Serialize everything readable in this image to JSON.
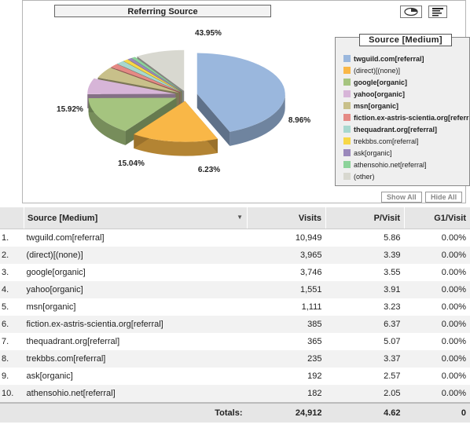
{
  "chart_data": {
    "type": "pie",
    "title": "Referring Source",
    "legend_title": "Source [Medium]",
    "legend_placement": "right",
    "slices": [
      {
        "label": "twguild.com[referral]",
        "percent": 43.95,
        "color": "#9ab7dd",
        "bold": true
      },
      {
        "label": "(direct)[(none)]",
        "percent": 15.92,
        "color": "#f9b747",
        "bold": false
      },
      {
        "label": "google[organic]",
        "percent": 15.04,
        "color": "#a5c47f",
        "bold": true
      },
      {
        "label": "yahoo[organic]",
        "percent": 6.23,
        "color": "#d7b5d8",
        "bold": true
      },
      {
        "label": "msn[organic]",
        "percent": 4.46,
        "color": "#c8c08a",
        "bold": true
      },
      {
        "label": "fiction.ex-astris-scientia.org[referral]",
        "percent": 1.55,
        "color": "#e58a85",
        "bold": true
      },
      {
        "label": "thequadrant.org[referral]",
        "percent": 1.47,
        "color": "#a8d8cf",
        "bold": true
      },
      {
        "label": "trekbbs.com[referral]",
        "percent": 0.94,
        "color": "#f7d747",
        "bold": false
      },
      {
        "label": "ask[organic]",
        "percent": 0.77,
        "color": "#9a88bb",
        "bold": false
      },
      {
        "label": "athensohio.net[referral]",
        "percent": 0.73,
        "color": "#8cd39a",
        "bold": false
      },
      {
        "label": "(other)",
        "percent": 8.96,
        "color": "#d8d8d0",
        "bold": false
      }
    ],
    "data_labels": [
      "43.95%",
      "15.92%",
      "15.04%",
      "6.23%",
      "8.96%"
    ]
  },
  "buttons": {
    "show_all": "Show All",
    "hide_all": "Hide All"
  },
  "icons": {
    "pie_toggle": "pie-chart-icon",
    "table_toggle": "table-view-icon"
  },
  "table": {
    "columns": [
      "Source [Medium]",
      "Visits",
      "P/Visit",
      "G1/Visit"
    ],
    "rows": [
      {
        "n": "1.",
        "source": "twguild.com[referral]",
        "visits": "10,949",
        "pv": "5.86",
        "g1": "0.00%"
      },
      {
        "n": "2.",
        "source": "(direct)[(none)]",
        "visits": "3,965",
        "pv": "3.39",
        "g1": "0.00%"
      },
      {
        "n": "3.",
        "source": "google[organic]",
        "visits": "3,746",
        "pv": "3.55",
        "g1": "0.00%"
      },
      {
        "n": "4.",
        "source": "yahoo[organic]",
        "visits": "1,551",
        "pv": "3.91",
        "g1": "0.00%"
      },
      {
        "n": "5.",
        "source": "msn[organic]",
        "visits": "1,111",
        "pv": "3.23",
        "g1": "0.00%"
      },
      {
        "n": "6.",
        "source": "fiction.ex-astris-scientia.org[referral]",
        "visits": "385",
        "pv": "6.37",
        "g1": "0.00%"
      },
      {
        "n": "7.",
        "source": "thequadrant.org[referral]",
        "visits": "365",
        "pv": "5.07",
        "g1": "0.00%"
      },
      {
        "n": "8.",
        "source": "trekbbs.com[referral]",
        "visits": "235",
        "pv": "3.37",
        "g1": "0.00%"
      },
      {
        "n": "9.",
        "source": "ask[organic]",
        "visits": "192",
        "pv": "2.57",
        "g1": "0.00%"
      },
      {
        "n": "10.",
        "source": "athensohio.net[referral]",
        "visits": "182",
        "pv": "2.05",
        "g1": "0.00%"
      }
    ],
    "totals": {
      "label": "Totals:",
      "visits": "24,912",
      "pv": "4.62",
      "g1": "0"
    }
  }
}
